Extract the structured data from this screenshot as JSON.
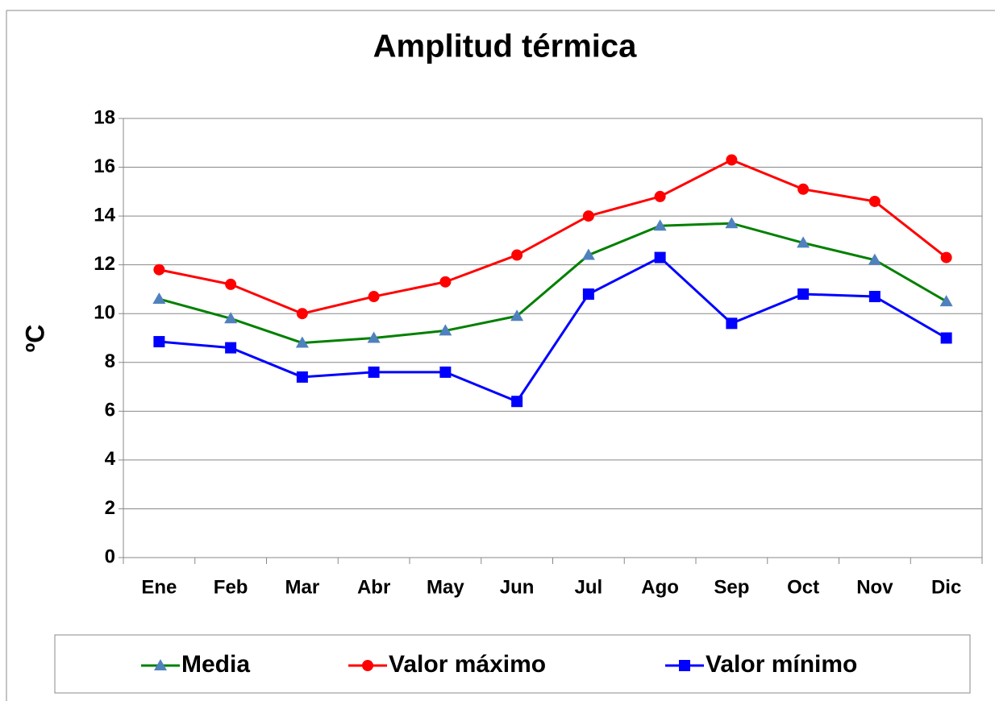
{
  "chart_data": {
    "type": "line",
    "title": "Amplitud térmica",
    "y_label": "ºC",
    "categories": [
      "Ene",
      "Feb",
      "Mar",
      "Abr",
      "May",
      "Jun",
      "Jul",
      "Ago",
      "Sep",
      "Oct",
      "Nov",
      "Dic"
    ],
    "series": [
      {
        "name": "Media",
        "color": "#008000",
        "marker": "triangle",
        "marker_color": "#4f81bd",
        "values": [
          10.6,
          9.8,
          8.8,
          9.0,
          9.3,
          9.9,
          12.4,
          13.6,
          13.7,
          12.9,
          12.2,
          10.5
        ]
      },
      {
        "name": "Valor máximo",
        "color": "#ff0000",
        "marker": "circle",
        "marker_color": "#ff0000",
        "values": [
          11.8,
          11.2,
          10.0,
          10.7,
          11.3,
          12.4,
          14.0,
          14.8,
          16.3,
          15.1,
          14.6,
          12.3
        ]
      },
      {
        "name": "Valor mínimo",
        "color": "#0000ff",
        "marker": "square",
        "marker_color": "#0000ff",
        "values": [
          8.85,
          8.6,
          7.4,
          7.6,
          7.6,
          6.4,
          10.8,
          12.3,
          9.6,
          10.8,
          10.7,
          9.0
        ]
      }
    ],
    "ylim": [
      0,
      18
    ],
    "yticks": [
      0,
      2,
      4,
      6,
      8,
      10,
      12,
      14,
      16,
      18
    ],
    "grid": true,
    "legend": "bottom"
  }
}
